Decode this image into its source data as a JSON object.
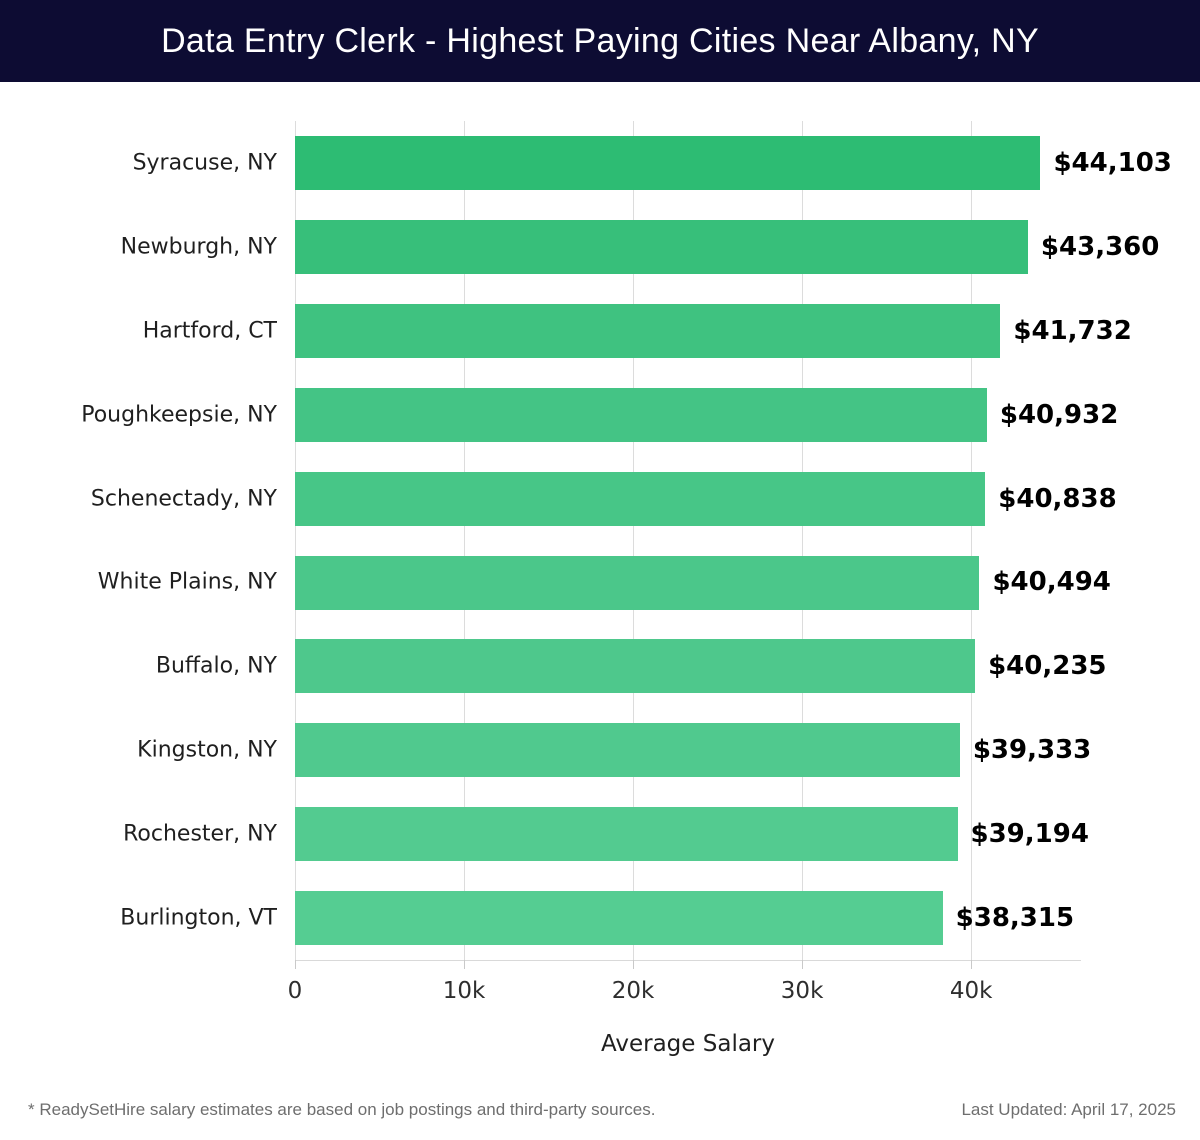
{
  "header": {
    "title": "Data Entry Clerk - Highest Paying Cities Near Albany, NY"
  },
  "chart_data": {
    "type": "bar",
    "orientation": "horizontal",
    "title": "Data Entry Clerk - Highest Paying Cities Near Albany, NY",
    "categories": [
      "Syracuse, NY",
      "Newburgh, NY",
      "Hartford, CT",
      "Poughkeepsie, NY",
      "Schenectady, NY",
      "White Plains, NY",
      "Buffalo, NY",
      "Kingston, NY",
      "Rochester, NY",
      "Burlington, VT"
    ],
    "values": [
      44103,
      43360,
      41732,
      40932,
      40838,
      40494,
      40235,
      39333,
      39194,
      38315
    ],
    "value_labels": [
      "$44,103",
      "$43,360",
      "$41,732",
      "$40,932",
      "$40,838",
      "$40,494",
      "$40,235",
      "$39,333",
      "$39,194",
      "$38,315"
    ],
    "bar_colors": [
      "#2dbc73",
      "#37bf7a",
      "#3fc280",
      "#44c485",
      "#47c687",
      "#4bc78a",
      "#4ec88c",
      "#50c98e",
      "#53cb90",
      "#55cd92"
    ],
    "xlabel": "Average Salary",
    "x_ticks": [
      {
        "value": 0,
        "label": "0"
      },
      {
        "value": 10000,
        "label": "10k"
      },
      {
        "value": 20000,
        "label": "20k"
      },
      {
        "value": 30000,
        "label": "30k"
      },
      {
        "value": 40000,
        "label": "40k"
      }
    ],
    "xlim": [
      0,
      46500
    ],
    "grid": true,
    "legend": "none"
  },
  "colors": {
    "header_bg": "#0d0c33",
    "header_text": "#ffffff",
    "gridline": "#dcdcdc",
    "category_text": "#1f1f1f",
    "value_text": "#000000",
    "tick_text": "#2e2e2e",
    "footer_text": "#6e6e6e"
  },
  "footer": {
    "note": "* ReadySetHire salary estimates are based on job postings and third-party sources.",
    "last_updated": "Last Updated: April 17, 2025"
  }
}
